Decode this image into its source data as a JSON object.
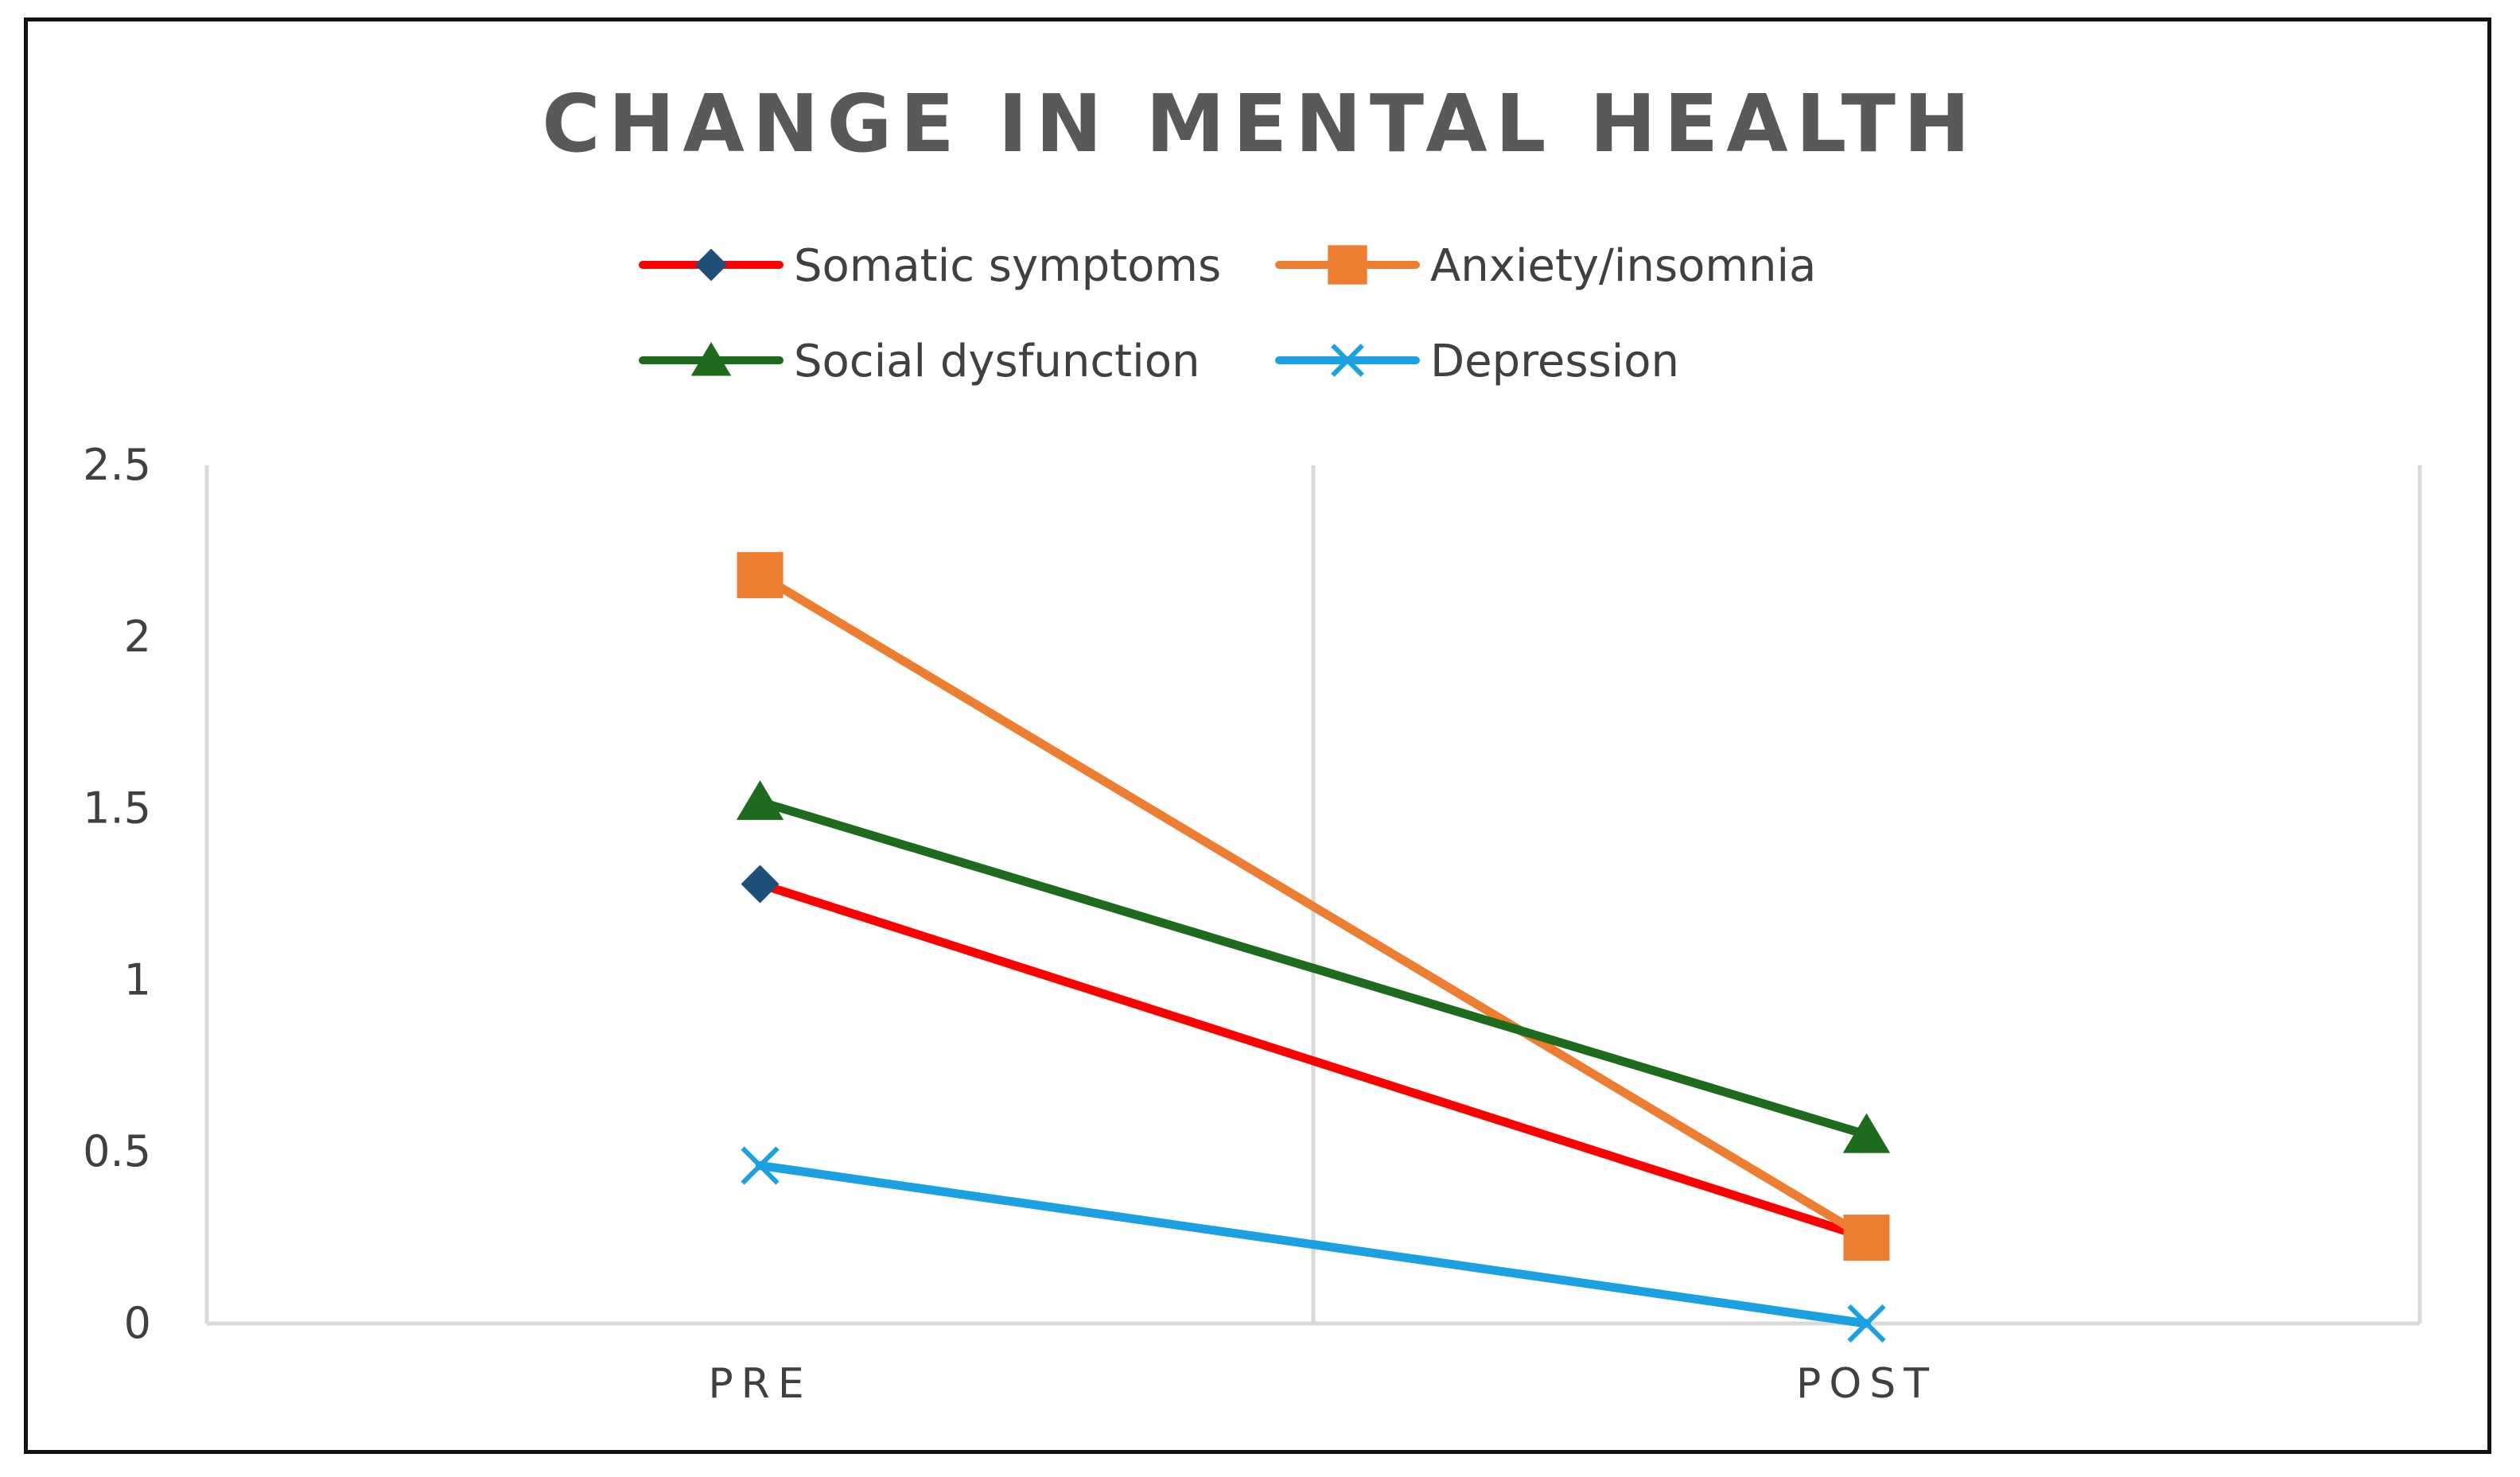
{
  "chart_data": {
    "type": "line",
    "title": "CHANGE IN MENTAL HEALTH",
    "xlabel": "",
    "ylabel": "",
    "categories": [
      "PRE",
      "POST"
    ],
    "ylim": [
      0,
      2.5
    ],
    "yticks": [
      "0",
      "0.5",
      "1",
      "1.5",
      "2",
      "2.5"
    ],
    "grid": "vertical",
    "legend_position": "top",
    "series": [
      {
        "name": "Somatic symptoms",
        "values": [
          1.28,
          0.25
        ],
        "color": "#FF0000",
        "marker": "diamond",
        "marker_color": "#1F4E79"
      },
      {
        "name": "Anxiety/insomnia",
        "values": [
          2.18,
          0.25
        ],
        "color": "#ED7D31",
        "marker": "square",
        "marker_color": "#ED7D31"
      },
      {
        "name": "Social dysfunction",
        "values": [
          1.52,
          0.55
        ],
        "color": "#1E6B1E",
        "marker": "triangle",
        "marker_color": "#1E6B1E"
      },
      {
        "name": "Depression",
        "values": [
          0.46,
          0.0
        ],
        "color": "#1BA1E2",
        "marker": "x",
        "marker_color": "#1BA1E2"
      }
    ]
  }
}
